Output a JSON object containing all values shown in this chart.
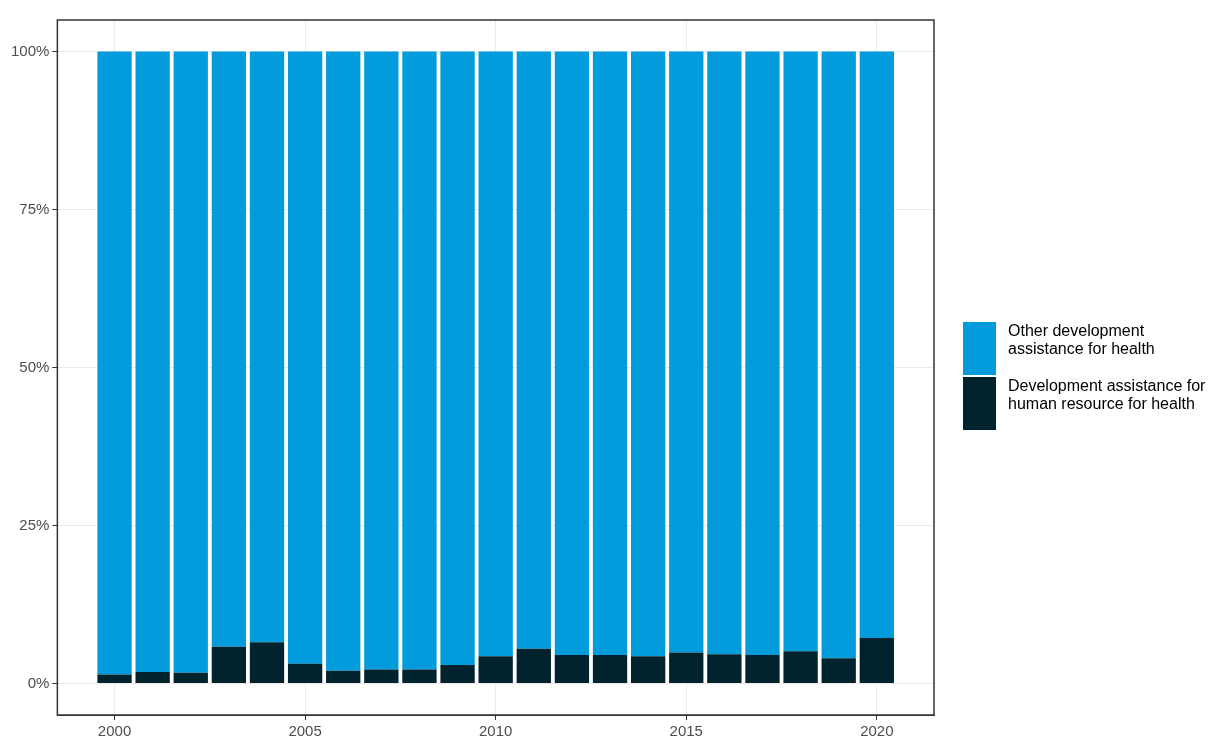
{
  "chart_data": {
    "type": "bar",
    "stacked": true,
    "x": [
      2000,
      2001,
      2002,
      2003,
      2004,
      2005,
      2006,
      2007,
      2008,
      2009,
      2010,
      2011,
      2012,
      2013,
      2014,
      2015,
      2016,
      2017,
      2018,
      2019,
      2020
    ],
    "series": [
      {
        "name": "Development assistance for human resource for health",
        "color": "#00232e",
        "values": [
          1.4,
          1.8,
          1.7,
          5.8,
          6.5,
          3.1,
          2.0,
          2.2,
          2.2,
          2.9,
          4.3,
          5.5,
          4.5,
          4.5,
          4.3,
          4.9,
          4.6,
          4.5,
          5.1,
          4.0,
          7.2
        ]
      },
      {
        "name": "Other development assistance for health",
        "color": "#029cdd",
        "values": [
          98.6,
          98.2,
          98.3,
          94.2,
          93.5,
          96.9,
          98.0,
          97.8,
          97.8,
          97.1,
          95.7,
          94.5,
          95.5,
          95.5,
          95.7,
          95.1,
          95.4,
          95.5,
          94.9,
          96.0,
          92.8
        ]
      }
    ],
    "xlim": [
      1998.5,
      2021.5
    ],
    "xticks": [
      2000,
      2005,
      2010,
      2015,
      2020
    ],
    "ylim": [
      -5,
      105
    ],
    "yticks": [
      {
        "value": 0,
        "label": "0%"
      },
      {
        "value": 25,
        "label": "25%"
      },
      {
        "value": 50,
        "label": "50%"
      },
      {
        "value": 75,
        "label": "75%"
      },
      {
        "value": 100,
        "label": "100%"
      }
    ],
    "grid": true,
    "legend": "right"
  }
}
